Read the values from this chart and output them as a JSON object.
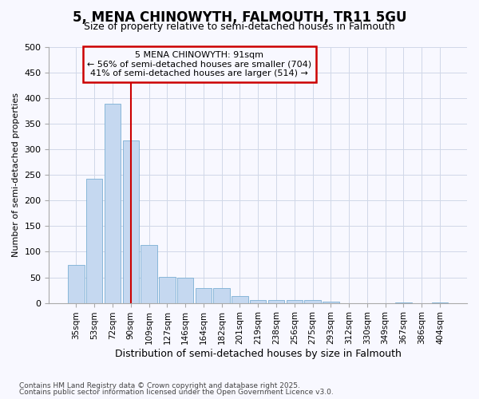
{
  "title_line1": "5, MENA CHINOWYTH, FALMOUTH, TR11 5GU",
  "title_line2": "Size of property relative to semi-detached houses in Falmouth",
  "xlabel": "Distribution of semi-detached houses by size in Falmouth",
  "ylabel": "Number of semi-detached properties",
  "footer_line1": "Contains HM Land Registry data © Crown copyright and database right 2025.",
  "footer_line2": "Contains public sector information licensed under the Open Government Licence v3.0.",
  "annotation_line1": "5 MENA CHINOWYTH: 91sqm",
  "annotation_line2": "← 56% of semi-detached houses are smaller (704)",
  "annotation_line3": "41% of semi-detached houses are larger (514) →",
  "bar_color": "#c5d8f0",
  "bar_edge_color": "#7bafd4",
  "vline_color": "#cc0000",
  "grid_color": "#d0d8e8",
  "background_color": "#f8f8ff",
  "categories": [
    "35sqm",
    "53sqm",
    "72sqm",
    "90sqm",
    "109sqm",
    "127sqm",
    "146sqm",
    "164sqm",
    "182sqm",
    "201sqm",
    "219sqm",
    "238sqm",
    "256sqm",
    "275sqm",
    "293sqm",
    "312sqm",
    "330sqm",
    "349sqm",
    "367sqm",
    "386sqm",
    "404sqm"
  ],
  "values": [
    75,
    242,
    390,
    318,
    114,
    51,
    50,
    29,
    29,
    14,
    5,
    6,
    6,
    5,
    2,
    0,
    0,
    0,
    1,
    0,
    1
  ],
  "ylim": [
    0,
    500
  ],
  "yticks": [
    0,
    50,
    100,
    150,
    200,
    250,
    300,
    350,
    400,
    450,
    500
  ],
  "vline_x_index": 3,
  "figsize": [
    6.0,
    5.0
  ],
  "dpi": 100
}
